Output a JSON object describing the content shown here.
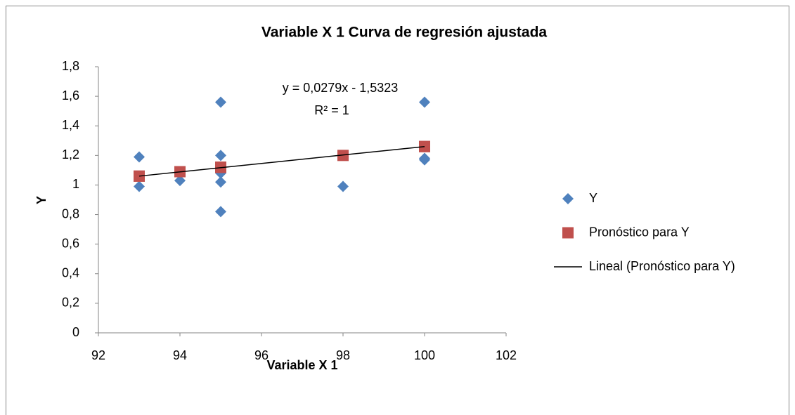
{
  "chart_data": {
    "type": "scatter",
    "title": "Variable X 1 Curva de regresión ajustada",
    "x_label": "Variable X 1",
    "y_label": "Y",
    "xlim": [
      92,
      102
    ],
    "xticks": [
      92,
      94,
      96,
      98,
      100,
      102
    ],
    "ylim": [
      0,
      1.8
    ],
    "yticks": [
      0,
      {
        "value": 0.2,
        "label": "0,2"
      },
      {
        "value": 0.4,
        "label": "0,4"
      },
      {
        "value": 0.6,
        "label": "0,6"
      },
      {
        "value": 0.8,
        "label": "0,8"
      },
      1,
      {
        "value": 1.2,
        "label": "1,2"
      },
      {
        "value": 1.4,
        "label": "1,4"
      },
      {
        "value": 1.6,
        "label": "1,6"
      },
      {
        "value": 1.8,
        "label": "1,8"
      }
    ],
    "grid": false,
    "legend": "right",
    "annotations": [
      "y = 0,0279x - 1,5323",
      "R² = 1"
    ],
    "series": [
      {
        "name": "Y",
        "marker": "diamond",
        "color": "#4f81bd",
        "x": [
          93,
          93,
          94,
          95,
          95,
          95,
          95,
          95,
          98,
          100,
          100,
          100
        ],
        "values": [
          1.19,
          0.99,
          1.03,
          1.56,
          1.2,
          1.08,
          1.02,
          0.82,
          0.99,
          1.56,
          1.18,
          1.17
        ]
      },
      {
        "name": "Pronóstico para Y",
        "marker": "square",
        "color": "#c0504d",
        "x": [
          93,
          93,
          94,
          95,
          95,
          95,
          95,
          95,
          98,
          100,
          100,
          100
        ],
        "values": [
          1.06,
          1.06,
          1.09,
          1.12,
          1.12,
          1.12,
          1.12,
          1.12,
          1.2,
          1.26,
          1.26,
          1.26
        ]
      },
      {
        "name": "Lineal (Pronóstico para Y)",
        "marker": "line",
        "color": "#000000",
        "x": [
          93,
          100
        ],
        "values": [
          1.06,
          1.26
        ]
      }
    ]
  }
}
